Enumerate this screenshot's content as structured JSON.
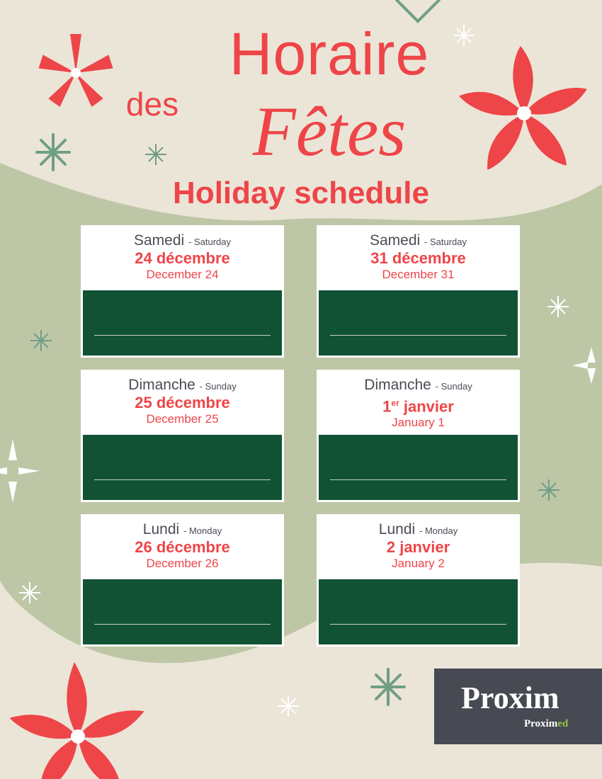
{
  "title": {
    "line1": "Horaire",
    "line2a": "des",
    "line2b": "Fêtes",
    "subtitle": "Holiday schedule"
  },
  "colors": {
    "accent": "#ee4548",
    "card_body": "#115234",
    "background": "#ebe5d8",
    "blob": "#bdc7a6"
  },
  "cards": [
    {
      "day_fr": "Samedi",
      "day_en": "- Saturday",
      "date_fr": "24 décembre",
      "date_en": "December 24"
    },
    {
      "day_fr": "Samedi",
      "day_en": "- Saturday",
      "date_fr": "31 décembre",
      "date_en": "December 31"
    },
    {
      "day_fr": "Dimanche",
      "day_en": "- Sunday",
      "date_fr": "25 décembre",
      "date_en": "December 25"
    },
    {
      "day_fr": "Dimanche",
      "day_en": "- Sunday",
      "date_fr_num": "1",
      "date_fr_sup": "er",
      "date_fr_rest": " janvier",
      "date_en": "January 1"
    },
    {
      "day_fr": "Lundi",
      "day_en": "- Monday",
      "date_fr": "26 décembre",
      "date_en": "December 26"
    },
    {
      "day_fr": "Lundi",
      "day_en": "- Monday",
      "date_fr": "2 janvier",
      "date_en": "January 2"
    }
  ],
  "logo": {
    "brand": "Proxim",
    "sub_a": "Proxim",
    "sub_b": "ed"
  }
}
